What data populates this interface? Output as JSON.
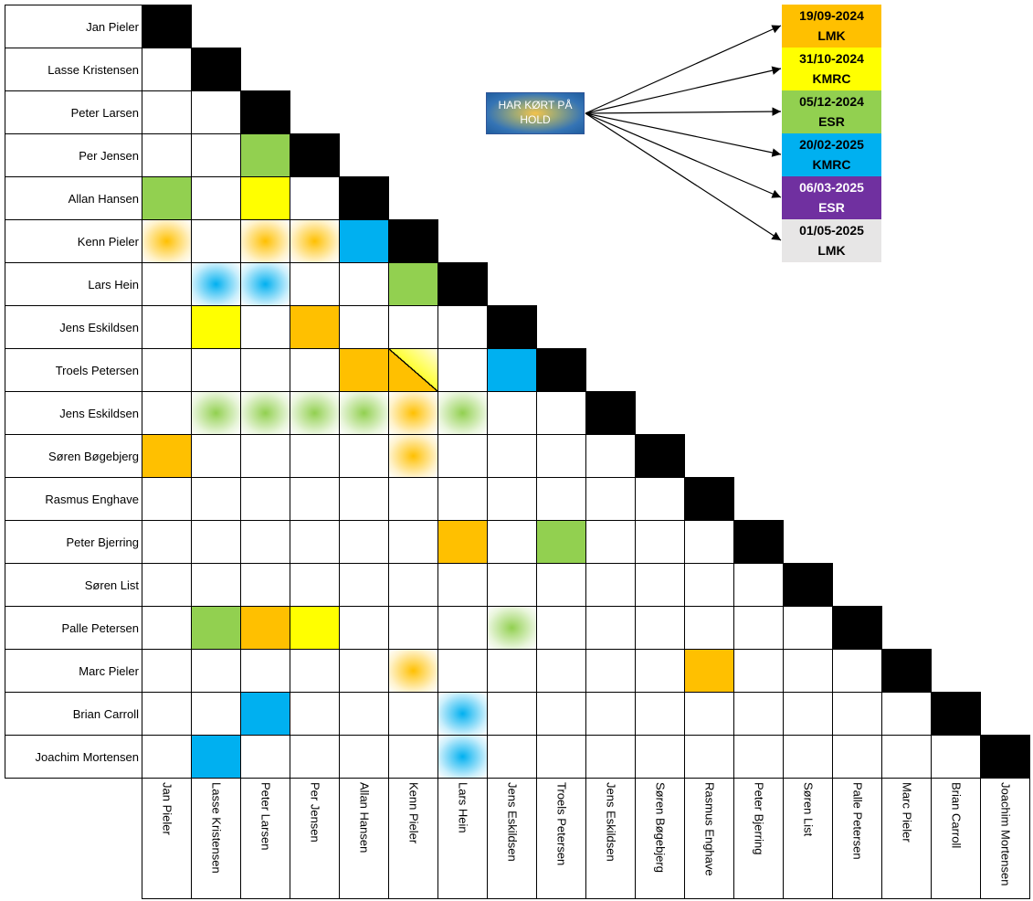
{
  "legend": [
    {
      "date": "19/09-2024",
      "code": "LMK",
      "color": "#ffc000",
      "text_color": "#000000"
    },
    {
      "date": "31/10-2024",
      "code": "KMRC",
      "color": "#ffff00",
      "text_color": "#000000"
    },
    {
      "date": "05/12-2024",
      "code": "ESR",
      "color": "#92d050",
      "text_color": "#000000"
    },
    {
      "date": "20/02-2025",
      "code": "KMRC",
      "color": "#00b0f0",
      "text_color": "#000000"
    },
    {
      "date": "06/03-2025",
      "code": "ESR",
      "color": "#7030a0",
      "text_color": "#ffffff"
    },
    {
      "date": "01/05-2025",
      "code": "LMK",
      "color": "#e7e6e6",
      "text_color": "#000000"
    }
  ],
  "note": {
    "text": "HAR KØRT PÅ HOLD"
  },
  "row_names": [
    "Jan Pieler",
    "Lasse Kristensen",
    "Peter Larsen",
    "Per Jensen",
    "Allan Hansen",
    "Kenn Pieler",
    "Lars Hein",
    "Jens Eskildsen",
    "Troels Petersen",
    "Jens Eskildsen",
    "Søren Bøgebjerg",
    "Rasmus Enghave",
    "Peter Bjerring",
    "Søren List",
    "Palle Petersen",
    "Marc Pieler",
    "Brian Carroll",
    "Joachim Mortensen"
  ],
  "col_names": [
    "Jan Pieler",
    "Lasse Kristensen",
    "Peter Larsen",
    "Per Jensen",
    "Allan Hansen",
    "Kenn Pieler",
    "Lars Hein",
    "Jens Eskildsen",
    "Troels Petersen",
    "Jens Eskildsen",
    "Søren Bøgebjerg",
    "Rasmus Enghave",
    "Peter Bjerring",
    "Søren List",
    "Palle Petersen",
    "Marc Pieler",
    "Brian Carroll",
    "Joachim Mortensen"
  ],
  "matches": [
    {
      "row": 3,
      "col": 2,
      "event": 2,
      "style": "solid"
    },
    {
      "row": 4,
      "col": 0,
      "event": 2,
      "style": "solid"
    },
    {
      "row": 4,
      "col": 2,
      "event": 1,
      "style": "solid"
    },
    {
      "row": 5,
      "col": 0,
      "event": 0,
      "style": "glow"
    },
    {
      "row": 5,
      "col": 2,
      "event": 0,
      "style": "glow"
    },
    {
      "row": 5,
      "col": 3,
      "event": 0,
      "style": "glow"
    },
    {
      "row": 5,
      "col": 4,
      "event": 3,
      "style": "solid"
    },
    {
      "row": 6,
      "col": 1,
      "event": 3,
      "style": "glow"
    },
    {
      "row": 6,
      "col": 2,
      "event": 3,
      "style": "glow"
    },
    {
      "row": 6,
      "col": 5,
      "event": 2,
      "style": "solid"
    },
    {
      "row": 7,
      "col": 1,
      "event": 1,
      "style": "solid"
    },
    {
      "row": 7,
      "col": 3,
      "event": 0,
      "style": "solid"
    },
    {
      "row": 8,
      "col": 4,
      "event": 0,
      "style": "solid"
    },
    {
      "row": 8,
      "col": 5,
      "event": 0,
      "event2": 1,
      "style": "split"
    },
    {
      "row": 8,
      "col": 7,
      "event": 3,
      "style": "solid"
    },
    {
      "row": 9,
      "col": 1,
      "event": 2,
      "style": "glow"
    },
    {
      "row": 9,
      "col": 2,
      "event": 2,
      "style": "glow"
    },
    {
      "row": 9,
      "col": 3,
      "event": 2,
      "style": "glow"
    },
    {
      "row": 9,
      "col": 4,
      "event": 2,
      "style": "glow"
    },
    {
      "row": 9,
      "col": 5,
      "event": 0,
      "style": "glow"
    },
    {
      "row": 9,
      "col": 6,
      "event": 2,
      "style": "glow"
    },
    {
      "row": 10,
      "col": 0,
      "event": 0,
      "style": "solid"
    },
    {
      "row": 10,
      "col": 5,
      "event": 0,
      "style": "glow"
    },
    {
      "row": 12,
      "col": 6,
      "event": 0,
      "style": "solid"
    },
    {
      "row": 12,
      "col": 8,
      "event": 2,
      "style": "solid"
    },
    {
      "row": 14,
      "col": 1,
      "event": 2,
      "style": "solid"
    },
    {
      "row": 14,
      "col": 2,
      "event": 0,
      "style": "solid"
    },
    {
      "row": 14,
      "col": 3,
      "event": 1,
      "style": "solid"
    },
    {
      "row": 14,
      "col": 7,
      "event": 2,
      "style": "glow"
    },
    {
      "row": 15,
      "col": 5,
      "event": 0,
      "style": "glow"
    },
    {
      "row": 15,
      "col": 11,
      "event": 0,
      "style": "solid"
    },
    {
      "row": 16,
      "col": 2,
      "event": 3,
      "style": "solid"
    },
    {
      "row": 16,
      "col": 6,
      "event": 3,
      "style": "glow"
    },
    {
      "row": 17,
      "col": 1,
      "event": 3,
      "style": "solid"
    },
    {
      "row": 17,
      "col": 6,
      "event": 3,
      "style": "glow"
    }
  ]
}
